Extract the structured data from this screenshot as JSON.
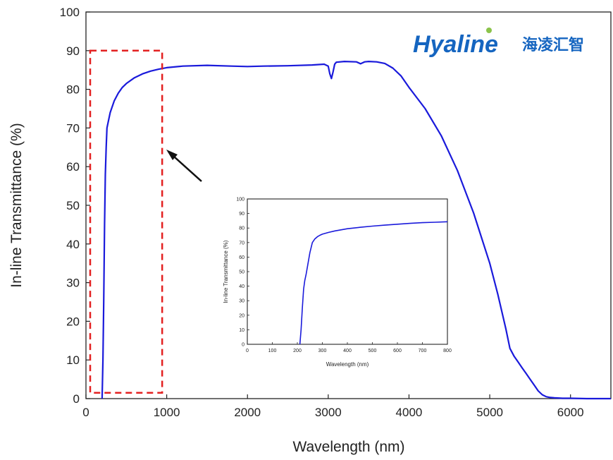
{
  "chart_data": [
    {
      "type": "line",
      "title": "",
      "xlabel": "Wavelength (nm)",
      "ylabel": "In-line  Transmittance (%)",
      "xlim": [
        0,
        6500
      ],
      "ylim": [
        0,
        100
      ],
      "x_ticks": [
        0,
        1000,
        2000,
        3000,
        4000,
        5000,
        6000
      ],
      "y_ticks": [
        0,
        10,
        20,
        30,
        40,
        50,
        60,
        70,
        80,
        90,
        100
      ],
      "grid": false,
      "series": [
        {
          "color": "#1a1adb",
          "x": [
            200,
            210,
            220,
            230,
            240,
            250,
            260,
            280,
            300,
            350,
            400,
            450,
            500,
            600,
            700,
            800,
            900,
            1000,
            1200,
            1500,
            1800,
            2000,
            2200,
            2500,
            2800,
            2950,
            3000,
            3020,
            3040,
            3060,
            3080,
            3100,
            3200,
            3350,
            3400,
            3450,
            3500,
            3600,
            3700,
            3800,
            3900,
            4000,
            4200,
            4400,
            4600,
            4800,
            5000,
            5100,
            5200,
            5250,
            5300,
            5350,
            5400,
            5450,
            5500,
            5550,
            5600,
            5650,
            5700,
            5750,
            5800,
            5900,
            6000,
            6200,
            6500
          ],
          "y": [
            0,
            10,
            25,
            45,
            58,
            65,
            70,
            72,
            74,
            77,
            79,
            80.5,
            81.5,
            83,
            84,
            84.7,
            85.2,
            85.6,
            86,
            86.2,
            86,
            85.9,
            86,
            86.1,
            86.3,
            86.5,
            86,
            84,
            82.8,
            84.5,
            86.5,
            87,
            87.2,
            87.1,
            86.6,
            87.1,
            87.2,
            87.1,
            86.7,
            85.5,
            83.5,
            80.5,
            75,
            68,
            59,
            48,
            35,
            27,
            18,
            13,
            11,
            9.5,
            8,
            6.5,
            5,
            3.5,
            2,
            1,
            0.5,
            0.3,
            0.2,
            0.1,
            0.1,
            0,
            0
          ]
        }
      ]
    },
    {
      "type": "line",
      "title": "",
      "xlabel": "Wavelength (nm)",
      "ylabel": "In-line  Transmittance (%)",
      "xlim": [
        0,
        800
      ],
      "ylim": [
        0,
        100
      ],
      "x_ticks": [
        0,
        100,
        200,
        300,
        400,
        500,
        600,
        700,
        800
      ],
      "y_ticks": [
        0,
        10,
        20,
        30,
        40,
        50,
        60,
        70,
        80,
        90,
        100
      ],
      "grid": false,
      "series": [
        {
          "color": "#1a1adb",
          "x": [
            210,
            215,
            220,
            225,
            230,
            235,
            240,
            250,
            260,
            270,
            280,
            290,
            300,
            325,
            350,
            400,
            450,
            500,
            550,
            600,
            650,
            700,
            750,
            800
          ],
          "y": [
            0,
            10,
            25,
            38,
            44,
            48,
            53,
            63,
            70,
            72.5,
            74,
            75,
            75.8,
            77,
            78,
            79.5,
            80.5,
            81.3,
            82,
            82.6,
            83.2,
            83.7,
            84,
            84.3
          ]
        }
      ]
    }
  ],
  "logo": {
    "text": "Hyaline",
    "chinese": "海凌汇智",
    "color": "#1565c0",
    "accent": "#8bc34a"
  },
  "annotations": {
    "highlight_box_color": "#e32020",
    "highlight_range_x": [
      0,
      900
    ],
    "highlight_range_y": [
      1.5,
      90
    ],
    "arrow": "points from inset chart to highlighted region"
  }
}
